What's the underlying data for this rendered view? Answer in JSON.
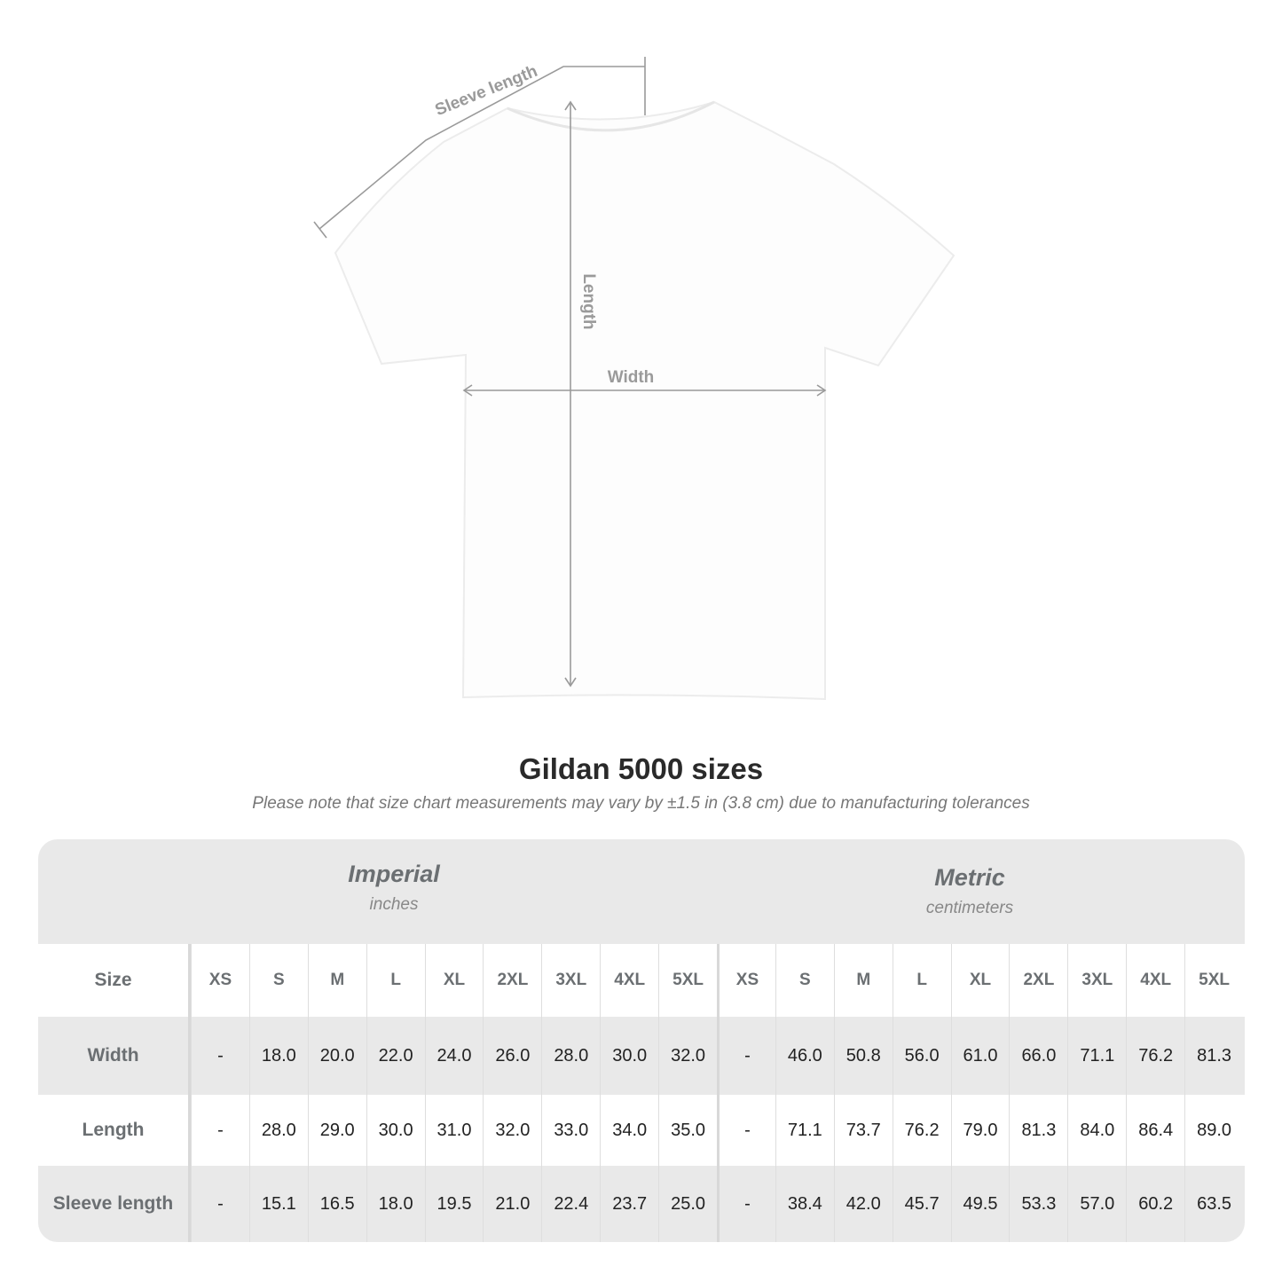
{
  "diagram": {
    "sleeve_label": "Sleeve length",
    "length_label": "Length",
    "width_label": "Width"
  },
  "title": "Gildan 5000 sizes",
  "subtitle": "Please note that size chart measurements may vary by ±1.5 in (3.8 cm) due to manufacturing tolerances",
  "table": {
    "imperial": {
      "name": "Imperial",
      "unit": "inches"
    },
    "metric": {
      "name": "Metric",
      "unit": "centimeters"
    },
    "size_label": "Size",
    "sizes": [
      "XS",
      "S",
      "M",
      "L",
      "XL",
      "2XL",
      "3XL",
      "4XL",
      "5XL"
    ],
    "rows": [
      {
        "label": "Width",
        "imperial": [
          "-",
          "18.0",
          "20.0",
          "22.0",
          "24.0",
          "26.0",
          "28.0",
          "30.0",
          "32.0"
        ],
        "metric": [
          "-",
          "46.0",
          "50.8",
          "56.0",
          "61.0",
          "66.0",
          "71.1",
          "76.2",
          "81.3"
        ]
      },
      {
        "label": "Length",
        "imperial": [
          "-",
          "28.0",
          "29.0",
          "30.0",
          "31.0",
          "32.0",
          "33.0",
          "34.0",
          "35.0"
        ],
        "metric": [
          "-",
          "71.1",
          "73.7",
          "76.2",
          "79.0",
          "81.3",
          "84.0",
          "86.4",
          "89.0"
        ]
      },
      {
        "label": "Sleeve length",
        "imperial": [
          "-",
          "15.1",
          "16.5",
          "18.0",
          "19.5",
          "21.0",
          "22.4",
          "23.7",
          "25.0"
        ],
        "metric": [
          "-",
          "38.4",
          "42.0",
          "45.7",
          "49.5",
          "53.3",
          "57.0",
          "60.2",
          "63.5"
        ]
      }
    ]
  }
}
